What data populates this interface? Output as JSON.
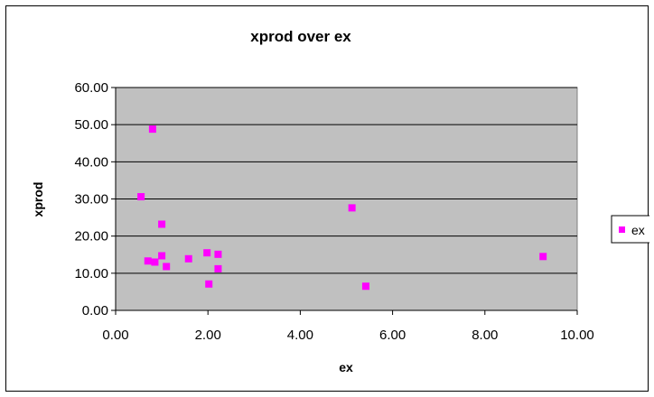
{
  "chart_data": {
    "type": "scatter",
    "title": "xprod over ex",
    "xlabel": "ex",
    "ylabel": "xprod",
    "xlim": [
      0,
      10
    ],
    "ylim": [
      0,
      60
    ],
    "x_ticks": [
      "0.00",
      "2.00",
      "4.00",
      "6.00",
      "8.00",
      "10.00"
    ],
    "y_ticks": [
      "0.00",
      "10.00",
      "20.00",
      "30.00",
      "40.00",
      "50.00",
      "60.00"
    ],
    "grid": "horizontal",
    "plot_background": "#c0c0c0",
    "legend": {
      "placement": "right",
      "entries": [
        "ex"
      ]
    },
    "series": [
      {
        "name": "ex",
        "color": "#ff00ff",
        "marker": "square",
        "points": [
          {
            "x": 0.55,
            "y": 30.6
          },
          {
            "x": 0.8,
            "y": 48.8
          },
          {
            "x": 0.7,
            "y": 13.3
          },
          {
            "x": 0.85,
            "y": 13.0
          },
          {
            "x": 1.0,
            "y": 14.7
          },
          {
            "x": 1.0,
            "y": 23.2
          },
          {
            "x": 1.1,
            "y": 11.8
          },
          {
            "x": 1.58,
            "y": 13.9
          },
          {
            "x": 1.98,
            "y": 15.5
          },
          {
            "x": 2.02,
            "y": 7.1
          },
          {
            "x": 2.22,
            "y": 15.1
          },
          {
            "x": 2.22,
            "y": 11.2
          },
          {
            "x": 5.12,
            "y": 27.6
          },
          {
            "x": 5.42,
            "y": 6.5
          },
          {
            "x": 9.26,
            "y": 14.5
          }
        ]
      }
    ]
  }
}
